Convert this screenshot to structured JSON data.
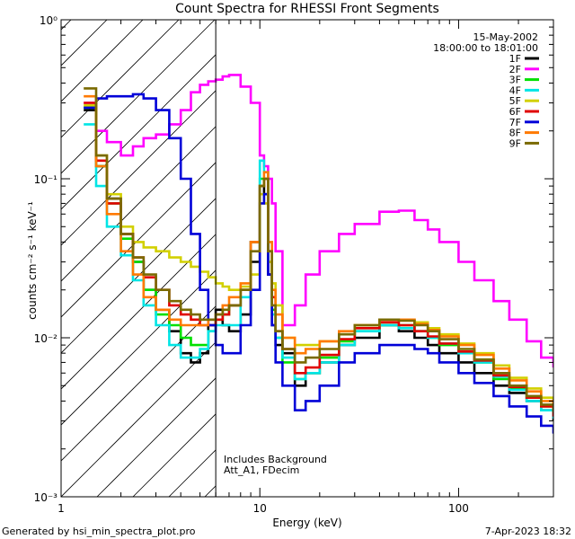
{
  "chart_data": {
    "type": "line",
    "title": "Count Spectra for RHESSI Front Segments",
    "xlabel": "Energy (keV)",
    "ylabel": "counts cm⁻² s⁻¹ keV⁻¹",
    "xscale": "log",
    "yscale": "log",
    "xlim": [
      1,
      300
    ],
    "ylim": [
      0.001,
      1
    ],
    "xticks": [
      {
        "value": 1,
        "label": "1"
      },
      {
        "value": 10,
        "label": "10"
      },
      {
        "value": 100,
        "label": "100"
      }
    ],
    "yticks": [
      {
        "value": 1,
        "label": "10⁰"
      },
      {
        "value": 0.1,
        "label": "10⁻¹"
      },
      {
        "value": 0.01,
        "label": "10⁻²"
      },
      {
        "value": 0.001,
        "label": "10⁻³"
      }
    ],
    "annotations": {
      "date": "15-May-2002",
      "time_range": "18:00:00 to 18:01:00",
      "note_line1": "Includes Background",
      "note_line2": "Att_A1, FDecim"
    },
    "hatched_region_upper_kev": 6,
    "x": [
      1.3,
      1.5,
      1.7,
      2.0,
      2.3,
      2.6,
      3.0,
      3.5,
      4.0,
      4.5,
      5.0,
      5.5,
      6.0,
      6.5,
      7.0,
      8.0,
      9.0,
      10.0,
      10.5,
      11.0,
      11.5,
      12.0,
      13.0,
      15.0,
      17.0,
      20.0,
      25.0,
      30.0,
      40.0,
      50.0,
      60.0,
      70.0,
      80.0,
      100.0,
      120.0,
      150.0,
      180.0,
      220.0,
      260.0,
      300.0
    ],
    "series": [
      {
        "name": "1F",
        "color": "#000000",
        "values": [
          0.27,
          0.12,
          0.075,
          0.045,
          0.03,
          0.02,
          0.015,
          0.011,
          0.008,
          0.007,
          0.008,
          0.012,
          0.015,
          0.012,
          0.011,
          0.014,
          0.03,
          0.09,
          0.08,
          0.025,
          0.012,
          0.009,
          0.008,
          0.005,
          0.006,
          0.007,
          0.009,
          0.01,
          0.012,
          0.011,
          0.01,
          0.009,
          0.008,
          0.007,
          0.006,
          0.005,
          0.0045,
          0.004,
          0.0035,
          0.003
        ]
      },
      {
        "name": "2F",
        "color": "#ff00ff",
        "values": [
          0.3,
          0.2,
          0.17,
          0.14,
          0.16,
          0.18,
          0.19,
          0.22,
          0.27,
          0.35,
          0.39,
          0.41,
          0.42,
          0.44,
          0.45,
          0.38,
          0.3,
          0.14,
          0.12,
          0.1,
          0.07,
          0.035,
          0.012,
          0.016,
          0.025,
          0.035,
          0.045,
          0.052,
          0.062,
          0.063,
          0.055,
          0.048,
          0.04,
          0.03,
          0.023,
          0.017,
          0.013,
          0.0095,
          0.0075,
          0.0065
        ]
      },
      {
        "name": "3F",
        "color": "#00e000",
        "values": [
          0.28,
          0.12,
          0.07,
          0.042,
          0.03,
          0.02,
          0.014,
          0.012,
          0.01,
          0.009,
          0.009,
          0.011,
          0.013,
          0.014,
          0.016,
          0.02,
          0.04,
          0.1,
          0.1,
          0.03,
          0.015,
          0.01,
          0.007,
          0.0055,
          0.006,
          0.0075,
          0.0095,
          0.011,
          0.012,
          0.012,
          0.011,
          0.01,
          0.009,
          0.008,
          0.007,
          0.0055,
          0.0048,
          0.0042,
          0.0037,
          0.0033
        ]
      },
      {
        "name": "4F",
        "color": "#00e5e5",
        "values": [
          0.22,
          0.09,
          0.05,
          0.033,
          0.023,
          0.016,
          0.012,
          0.009,
          0.0075,
          0.0075,
          0.0085,
          0.011,
          0.012,
          0.012,
          0.012,
          0.018,
          0.04,
          0.13,
          0.11,
          0.03,
          0.014,
          0.01,
          0.0075,
          0.0055,
          0.006,
          0.007,
          0.009,
          0.011,
          0.012,
          0.0115,
          0.011,
          0.01,
          0.0092,
          0.008,
          0.007,
          0.0057,
          0.0047,
          0.004,
          0.0035,
          0.0031
        ]
      },
      {
        "name": "5F",
        "color": "#d2d000",
        "values": [
          0.29,
          0.14,
          0.08,
          0.05,
          0.04,
          0.037,
          0.035,
          0.032,
          0.03,
          0.028,
          0.026,
          0.024,
          0.022,
          0.021,
          0.02,
          0.021,
          0.025,
          0.08,
          0.07,
          0.03,
          0.022,
          0.016,
          0.01,
          0.009,
          0.009,
          0.0095,
          0.0105,
          0.012,
          0.013,
          0.013,
          0.0125,
          0.0115,
          0.0105,
          0.0092,
          0.008,
          0.0067,
          0.0056,
          0.0048,
          0.0042,
          0.0037
        ]
      },
      {
        "name": "6F",
        "color": "#e00000",
        "values": [
          0.3,
          0.13,
          0.07,
          0.045,
          0.032,
          0.024,
          0.02,
          0.016,
          0.014,
          0.013,
          0.012,
          0.012,
          0.013,
          0.014,
          0.016,
          0.02,
          0.04,
          0.09,
          0.1,
          0.035,
          0.018,
          0.011,
          0.0085,
          0.006,
          0.0065,
          0.0078,
          0.0098,
          0.0115,
          0.0125,
          0.012,
          0.011,
          0.0102,
          0.0092,
          0.0082,
          0.0072,
          0.0058,
          0.0049,
          0.0042,
          0.0037,
          0.0032
        ]
      },
      {
        "name": "7F",
        "color": "#0000d8",
        "values": [
          0.28,
          0.32,
          0.33,
          0.33,
          0.34,
          0.32,
          0.27,
          0.18,
          0.1,
          0.045,
          0.02,
          0.012,
          0.009,
          0.008,
          0.008,
          0.012,
          0.02,
          0.07,
          0.08,
          0.025,
          0.012,
          0.007,
          0.005,
          0.0035,
          0.004,
          0.005,
          0.007,
          0.008,
          0.009,
          0.009,
          0.0085,
          0.008,
          0.007,
          0.006,
          0.0052,
          0.0043,
          0.0037,
          0.0032,
          0.0028,
          0.0025
        ]
      },
      {
        "name": "8F",
        "color": "#ff7a00",
        "values": [
          0.33,
          0.12,
          0.06,
          0.035,
          0.025,
          0.018,
          0.015,
          0.013,
          0.012,
          0.012,
          0.012,
          0.013,
          0.014,
          0.016,
          0.018,
          0.022,
          0.04,
          0.09,
          0.11,
          0.04,
          0.02,
          0.014,
          0.01,
          0.008,
          0.0085,
          0.0095,
          0.011,
          0.012,
          0.013,
          0.013,
          0.0122,
          0.0112,
          0.0102,
          0.009,
          0.0078,
          0.0064,
          0.0054,
          0.0046,
          0.004,
          0.0035
        ]
      },
      {
        "name": "9F",
        "color": "#7a6a00",
        "values": [
          0.37,
          0.14,
          0.075,
          0.045,
          0.032,
          0.025,
          0.02,
          0.017,
          0.015,
          0.014,
          0.013,
          0.013,
          0.014,
          0.015,
          0.016,
          0.02,
          0.035,
          0.09,
          0.1,
          0.035,
          0.016,
          0.011,
          0.0085,
          0.007,
          0.0075,
          0.0085,
          0.0105,
          0.012,
          0.013,
          0.0128,
          0.012,
          0.011,
          0.0098,
          0.0085,
          0.0073,
          0.006,
          0.005,
          0.0043,
          0.0038,
          0.0034
        ]
      }
    ]
  },
  "footer": {
    "generated_by": "Generated by hsi_min_spectra_plot.pro",
    "timestamp": "7-Apr-2023 18:32"
  }
}
